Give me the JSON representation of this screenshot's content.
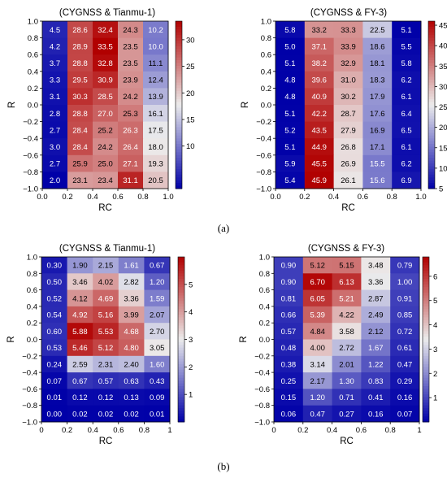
{
  "panel_labels": {
    "a": "(a)",
    "b": "(b)"
  },
  "colormap": {
    "low": "#0000a8",
    "mid": "#ececec",
    "high": "#b10000"
  },
  "chart_data": [
    {
      "type": "heatmap",
      "title": "(CYGNSS & Tianmu-1)",
      "xlabel": "RC",
      "ylabel": "R",
      "x_ticks": [
        "0.0",
        "0.2",
        "0.4",
        "0.6",
        "0.8",
        "1.0"
      ],
      "y_ticks": [
        "1.0",
        "0.8",
        "0.6",
        "0.4",
        "0.2",
        "0.0",
        "−0.2",
        "−0.4",
        "−0.6",
        "−0.8",
        "−1.0"
      ],
      "colorbar_ticks": [
        10,
        15,
        20,
        25,
        30
      ],
      "vmin": 2,
      "vmax": 33.5,
      "values": [
        [
          "4.5",
          "28.6",
          "32.4",
          "24.3",
          "10.2"
        ],
        [
          "4.2",
          "28.9",
          "33.5",
          "23.5",
          "10.0"
        ],
        [
          "3.7",
          "28.8",
          "32.8",
          "23.5",
          "11.1"
        ],
        [
          "3.3",
          "29.5",
          "30.9",
          "23.9",
          "12.4"
        ],
        [
          "3.1",
          "30.3",
          "28.5",
          "24.2",
          "13.9"
        ],
        [
          "2.8",
          "28.8",
          "27.0",
          "25.3",
          "16.1"
        ],
        [
          "2.7",
          "28.4",
          "25.2",
          "26.3",
          "17.5"
        ],
        [
          "3.0",
          "28.4",
          "24.2",
          "26.4",
          "18.0"
        ],
        [
          "2.7",
          "25.9",
          "25.0",
          "27.1",
          "19.3"
        ],
        [
          "2.0",
          "23.1",
          "23.4",
          "31.1",
          "20.5"
        ]
      ]
    },
    {
      "type": "heatmap",
      "title": "(CYGNSS & FY-3)",
      "xlabel": "RC",
      "ylabel": "R",
      "x_ticks": [
        "0.0",
        "0.2",
        "0.4",
        "0.6",
        "0.8",
        "1.0"
      ],
      "y_ticks": [
        "1.0",
        "0.8",
        "0.6",
        "0.4",
        "0.2",
        "0.0",
        "−0.2",
        "−0.4",
        "−0.6",
        "−0.8",
        "−1.0"
      ],
      "colorbar_ticks": [
        5,
        10,
        15,
        20,
        25,
        30,
        35,
        40,
        45
      ],
      "vmin": 5,
      "vmax": 46,
      "values": [
        [
          "5.8",
          "33.2",
          "33.3",
          "22.5",
          "5.1"
        ],
        [
          "5.0",
          "37.1",
          "33.9",
          "18.6",
          "5.5"
        ],
        [
          "5.1",
          "38.2",
          "32.9",
          "18.1",
          "5.8"
        ],
        [
          "4.8",
          "39.6",
          "31.0",
          "18.3",
          "6.2"
        ],
        [
          "4.8",
          "40.9",
          "30.2",
          "17.9",
          "6.1"
        ],
        [
          "5.1",
          "42.2",
          "28.7",
          "17.6",
          "6.4"
        ],
        [
          "5.2",
          "43.5",
          "27.9",
          "16.9",
          "6.5"
        ],
        [
          "5.1",
          "44.9",
          "26.8",
          "17.1",
          "6.1"
        ],
        [
          "5.9",
          "45.5",
          "26.9",
          "15.5",
          "6.2"
        ],
        [
          "5.4",
          "45.9",
          "26.1",
          "15.6",
          "6.9"
        ]
      ]
    },
    {
      "type": "heatmap",
      "title": "(CYGNSS & Tianmu-1)",
      "xlabel": "RC",
      "ylabel": "R",
      "x_ticks": [
        "0",
        "0.2",
        "0.4",
        "0.6",
        "0.8",
        "1"
      ],
      "y_ticks": [
        "1.0",
        "0.8",
        "0.6",
        "0.4",
        "0.2",
        "0.0",
        "−0.2",
        "−0.4",
        "−0.6",
        "−0.8",
        "−1.0"
      ],
      "colorbar_ticks": [
        1,
        2,
        3,
        4,
        5
      ],
      "vmin": 0,
      "vmax": 6,
      "values": [
        [
          "0.30",
          "1.90",
          "2.15",
          "1.61",
          "0.67"
        ],
        [
          "0.50",
          "3.46",
          "4.02",
          "2.82",
          "1.20"
        ],
        [
          "0.52",
          "4.12",
          "4.69",
          "3.36",
          "1.59"
        ],
        [
          "0.54",
          "4.92",
          "5.16",
          "3.99",
          "2.07"
        ],
        [
          "0.60",
          "5.88",
          "5.53",
          "4.68",
          "2.70"
        ],
        [
          "0.53",
          "5.46",
          "5.12",
          "4.80",
          "3.05"
        ],
        [
          "0.24",
          "2.59",
          "2.31",
          "2.40",
          "1.60"
        ],
        [
          "0.07",
          "0.67",
          "0.57",
          "0.63",
          "0.43"
        ],
        [
          "0.01",
          "0.12",
          "0.12",
          "0.13",
          "0.09"
        ],
        [
          "0.00",
          "0.02",
          "0.02",
          "0.02",
          "0.01"
        ]
      ]
    },
    {
      "type": "heatmap",
      "title": "(CYGNSS & FY-3)",
      "xlabel": "RC",
      "ylabel": "R",
      "x_ticks": [
        "0",
        "0.2",
        "0.4",
        "0.6",
        "0.8",
        "1"
      ],
      "y_ticks": [
        "1.0",
        "0.8",
        "0.6",
        "0.4",
        "0.2",
        "0.0",
        "−0.2",
        "−0.4",
        "−0.6",
        "−0.8",
        "−1.0"
      ],
      "colorbar_ticks": [
        1,
        2,
        3,
        4,
        5,
        6
      ],
      "vmin": 0,
      "vmax": 6.8,
      "values": [
        [
          "0.90",
          "5.12",
          "5.15",
          "3.48",
          "0.79"
        ],
        [
          "0.90",
          "6.70",
          "6.13",
          "3.36",
          "1.00"
        ],
        [
          "0.81",
          "6.05",
          "5.21",
          "2.87",
          "0.91"
        ],
        [
          "0.66",
          "5.39",
          "4.22",
          "2.49",
          "0.85"
        ],
        [
          "0.57",
          "4.84",
          "3.58",
          "2.12",
          "0.72"
        ],
        [
          "0.48",
          "4.00",
          "2.72",
          "1.67",
          "0.61"
        ],
        [
          "0.38",
          "3.14",
          "2.01",
          "1.22",
          "0.47"
        ],
        [
          "0.25",
          "2.17",
          "1.30",
          "0.83",
          "0.29"
        ],
        [
          "0.15",
          "1.20",
          "0.71",
          "0.41",
          "0.16"
        ],
        [
          "0.06",
          "0.47",
          "0.27",
          "0.16",
          "0.07"
        ]
      ]
    }
  ]
}
